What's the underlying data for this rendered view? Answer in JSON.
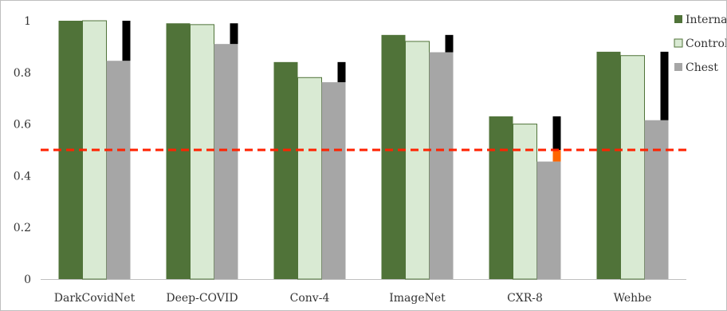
{
  "chart_data": {
    "type": "bar",
    "title": "",
    "xlabel": "",
    "ylabel": "",
    "ylim": [
      0,
      1
    ],
    "yticks": [
      0,
      0.2,
      0.4,
      0.6,
      0.8,
      1
    ],
    "ytick_labels": [
      "0",
      "0.2",
      "0.4",
      "0.6",
      "0.8",
      "1"
    ],
    "grid": false,
    "legend_position": "top-right",
    "categories": [
      "DarkCovidNet",
      "Deep-COVID",
      "Conv-4",
      "ImageNet",
      "CXR-8",
      "Wehbe"
    ],
    "series": [
      {
        "name": "Internal",
        "color": "#507339",
        "values": [
          1.0,
          0.99,
          0.84,
          0.945,
          0.63,
          0.88
        ]
      },
      {
        "name": "Control",
        "color": "#d9ead3",
        "values": [
          1.0,
          0.985,
          0.78,
          0.92,
          0.6,
          0.865
        ]
      },
      {
        "name": "Chest",
        "color": "#a6a6a6",
        "values": [
          0.845,
          0.91,
          0.762,
          0.878,
          0.455,
          0.615
        ]
      }
    ],
    "drop_bars": {
      "description_color_default": "#000000",
      "segments": [
        {
          "category": "DarkCovidNet",
          "from": 0.845,
          "to": 1.0,
          "color": "#000000"
        },
        {
          "category": "Deep-COVID",
          "from": 0.91,
          "to": 0.99,
          "color": "#000000"
        },
        {
          "category": "Conv-4",
          "from": 0.762,
          "to": 0.84,
          "color": "#000000"
        },
        {
          "category": "ImageNet",
          "from": 0.878,
          "to": 0.945,
          "color": "#000000"
        },
        {
          "category": "CXR-8",
          "from": 0.455,
          "to": 0.5,
          "color": "#ff6600"
        },
        {
          "category": "CXR-8",
          "from": 0.5,
          "to": 0.63,
          "color": "#000000"
        },
        {
          "category": "Wehbe",
          "from": 0.615,
          "to": 0.88,
          "color": "#000000"
        }
      ]
    },
    "reference_line": {
      "value": 0.5,
      "color": "#ff2200",
      "style": "dashed"
    },
    "axis_color": "#bfbfbf"
  }
}
